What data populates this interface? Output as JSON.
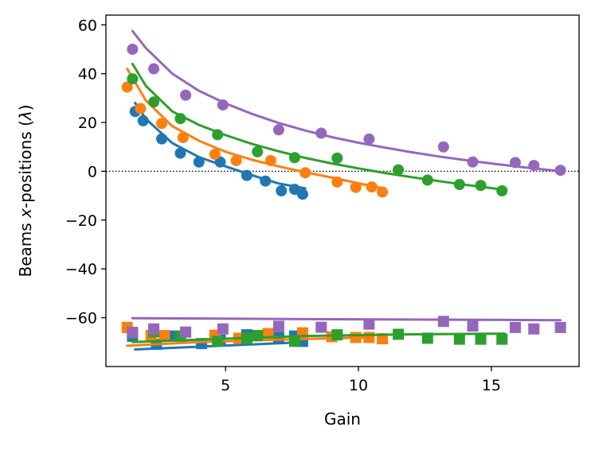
{
  "chart_data": {
    "type": "scatter",
    "title": "",
    "xlabel": "Gain",
    "ylabel_prefix": "Beams ",
    "ylabel_italic": "x",
    "ylabel_middle": "-positions (",
    "ylabel_symbol": "λ",
    "ylabel_suffix": ")",
    "xlim": [
      0.5,
      18.3
    ],
    "ylim": [
      -80,
      64
    ],
    "x_ticks": [
      5,
      10,
      15
    ],
    "x_tick_labels": [
      "5",
      "10",
      "15"
    ],
    "y_ticks": [
      60,
      40,
      20,
      0,
      -20,
      -40,
      -60
    ],
    "y_tick_labels": [
      "60",
      "40",
      "20",
      "0",
      "−20",
      "−40",
      "−60"
    ],
    "reference_line": {
      "y": 0,
      "style": "dotted",
      "color": "#000000"
    },
    "grid": false,
    "series": [
      {
        "name": "blue",
        "color": "#1f77b4",
        "circles": [
          [
            1.6,
            24.5
          ],
          [
            1.9,
            20.7
          ],
          [
            2.6,
            13.3
          ],
          [
            3.3,
            7.4
          ],
          [
            4.0,
            3.8
          ],
          [
            4.8,
            3.8
          ],
          [
            5.8,
            -1.7
          ],
          [
            6.5,
            -4.0
          ],
          [
            7.1,
            -8.0
          ],
          [
            7.6,
            -7.4
          ],
          [
            7.9,
            -9.4
          ]
        ],
        "fit_upper": [
          [
            1.6,
            28
          ],
          [
            2.0,
            21.5
          ],
          [
            3.0,
            11.5
          ],
          [
            4.0,
            5.8
          ],
          [
            5.0,
            2.0
          ],
          [
            6.0,
            -1.6
          ],
          [
            7.0,
            -5.0
          ],
          [
            8.0,
            -7.0
          ]
        ],
        "squares": [
          [
            1.5,
            -67.6
          ],
          [
            2.4,
            -70.9
          ],
          [
            3.1,
            -67.5
          ],
          [
            4.1,
            -70.6
          ],
          [
            4.8,
            -69.2
          ],
          [
            5.8,
            -67.0
          ],
          [
            7.0,
            -68.1
          ],
          [
            7.6,
            -67.5
          ],
          [
            7.9,
            -69.7
          ]
        ],
        "fit_lower": [
          [
            1.6,
            -73
          ],
          [
            8.0,
            -70
          ]
        ]
      },
      {
        "name": "orange",
        "color": "#ff7f0e",
        "circles": [
          [
            1.3,
            34.5
          ],
          [
            1.8,
            25.7
          ],
          [
            2.6,
            19.6
          ],
          [
            3.4,
            13.8
          ],
          [
            4.6,
            7.0
          ],
          [
            5.4,
            4.4
          ],
          [
            6.7,
            4.4
          ],
          [
            8.0,
            -0.6
          ],
          [
            9.2,
            -4.4
          ],
          [
            9.9,
            -6.6
          ],
          [
            10.5,
            -6.4
          ],
          [
            10.9,
            -8.5
          ]
        ],
        "fit_upper": [
          [
            1.3,
            42
          ],
          [
            2.0,
            29
          ],
          [
            3.0,
            18.5
          ],
          [
            4.0,
            12.5
          ],
          [
            5.0,
            8.0
          ],
          [
            6.0,
            4.7
          ],
          [
            7.0,
            2.0
          ],
          [
            8.0,
            -0.4
          ],
          [
            9.0,
            -2.6
          ],
          [
            10.0,
            -4.9
          ],
          [
            11.0,
            -7.2
          ]
        ],
        "squares": [
          [
            1.3,
            -64.0
          ],
          [
            2.2,
            -67.3
          ],
          [
            2.7,
            -67.3
          ],
          [
            4.6,
            -67.2
          ],
          [
            5.5,
            -68.4
          ],
          [
            6.6,
            -66.5
          ],
          [
            7.9,
            -66.2
          ],
          [
            9.0,
            -67.8
          ],
          [
            9.9,
            -68.1
          ],
          [
            10.4,
            -68.1
          ],
          [
            10.9,
            -68.6
          ]
        ],
        "fit_lower": [
          [
            1.3,
            -71.5
          ],
          [
            4.0,
            -70.0
          ],
          [
            7.0,
            -69.0
          ],
          [
            10.5,
            -68.0
          ]
        ]
      },
      {
        "name": "green",
        "color": "#2ca02c",
        "circles": [
          [
            1.5,
            37.9
          ],
          [
            2.3,
            28.4
          ],
          [
            3.3,
            21.6
          ],
          [
            4.7,
            15.0
          ],
          [
            6.2,
            8.0
          ],
          [
            7.6,
            5.6
          ],
          [
            9.2,
            5.4
          ],
          [
            11.5,
            0.6
          ],
          [
            12.6,
            -3.6
          ],
          [
            13.8,
            -5.4
          ],
          [
            14.6,
            -5.8
          ],
          [
            15.4,
            -8.0
          ]
        ],
        "fit_upper": [
          [
            1.5,
            44
          ],
          [
            2.0,
            35
          ],
          [
            3.0,
            24.5
          ],
          [
            4.0,
            19.0
          ],
          [
            5.0,
            14.8
          ],
          [
            6.0,
            11.2
          ],
          [
            7.0,
            8.2
          ],
          [
            8.0,
            5.5
          ],
          [
            9.0,
            3.2
          ],
          [
            10.0,
            1.2
          ],
          [
            11.0,
            -0.7
          ],
          [
            12.0,
            -2.4
          ],
          [
            13.0,
            -4.0
          ],
          [
            14.0,
            -5.5
          ],
          [
            15.5,
            -7.6
          ]
        ],
        "squares": [
          [
            1.5,
            -66.4
          ],
          [
            2.3,
            -65.8
          ],
          [
            3.3,
            -67.6
          ],
          [
            4.7,
            -69.7
          ],
          [
            5.8,
            -68.4
          ],
          [
            6.2,
            -67.3
          ],
          [
            7.6,
            -69.7
          ],
          [
            9.2,
            -67.0
          ],
          [
            11.5,
            -66.8
          ],
          [
            12.6,
            -68.4
          ],
          [
            13.8,
            -68.8
          ],
          [
            14.6,
            -68.8
          ],
          [
            15.4,
            -68.8
          ]
        ],
        "fit_lower": [
          [
            1.5,
            -70
          ],
          [
            4.0,
            -69
          ],
          [
            8.0,
            -67.5
          ],
          [
            12.0,
            -66.8
          ],
          [
            15.5,
            -66.5
          ]
        ]
      },
      {
        "name": "purple",
        "color": "#9467bd",
        "circles": [
          [
            1.5,
            50.0
          ],
          [
            2.3,
            42.0
          ],
          [
            3.5,
            31.2
          ],
          [
            4.9,
            27.2
          ],
          [
            7.0,
            17.0
          ],
          [
            8.6,
            15.6
          ],
          [
            10.4,
            13.2
          ],
          [
            13.2,
            10.0
          ],
          [
            14.3,
            3.8
          ],
          [
            15.9,
            3.6
          ],
          [
            16.6,
            2.4
          ],
          [
            17.6,
            0.4
          ]
        ],
        "fit_upper": [
          [
            1.5,
            57.5
          ],
          [
            2.0,
            50.5
          ],
          [
            3.0,
            40.0
          ],
          [
            4.0,
            33.0
          ],
          [
            5.0,
            27.8
          ],
          [
            6.0,
            23.5
          ],
          [
            7.0,
            19.8
          ],
          [
            8.0,
            16.7
          ],
          [
            9.0,
            14.0
          ],
          [
            10.0,
            11.7
          ],
          [
            11.0,
            9.7
          ],
          [
            12.0,
            7.8
          ],
          [
            13.0,
            6.1
          ],
          [
            14.0,
            4.6
          ],
          [
            15.0,
            3.2
          ],
          [
            16.0,
            1.9
          ],
          [
            17.0,
            0.7
          ],
          [
            17.6,
            0.0
          ]
        ],
        "squares": [
          [
            1.5,
            -66.0
          ],
          [
            2.3,
            -64.6
          ],
          [
            3.5,
            -65.9
          ],
          [
            4.9,
            -64.6
          ],
          [
            7.0,
            -63.5
          ],
          [
            8.6,
            -63.9
          ],
          [
            10.4,
            -62.6
          ],
          [
            13.2,
            -61.5
          ],
          [
            14.3,
            -63.4
          ],
          [
            15.9,
            -64.0
          ],
          [
            16.6,
            -64.6
          ],
          [
            17.6,
            -64.0
          ]
        ],
        "fit_lower": [
          [
            1.5,
            -60.2
          ],
          [
            9.0,
            -60.6
          ],
          [
            17.6,
            -61.0
          ]
        ]
      }
    ]
  }
}
